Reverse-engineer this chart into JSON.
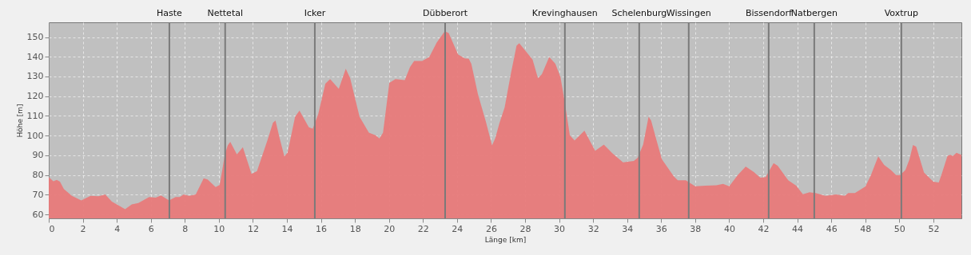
{
  "chart_data": {
    "type": "area",
    "xlabel": "Länge [km]",
    "ylabel": "Höhe [m]",
    "x": [
      0,
      0.27,
      0.47,
      0.66,
      0.89,
      1.36,
      1.91,
      2.46,
      2.93,
      3.32,
      3.71,
      4.49,
      4.88,
      5.27,
      5.9,
      6.29,
      6.6,
      7.07,
      7.46,
      7.7,
      7.93,
      8.25,
      8.64,
      9.11,
      9.34,
      9.81,
      10.05,
      10.36,
      10.52,
      10.67,
      11.06,
      11.41,
      11.92,
      12.24,
      12.86,
      13.18,
      13.33,
      13.57,
      13.85,
      14.04,
      14.48,
      14.74,
      15.29,
      15.52,
      15.84,
      16.26,
      16.54,
      16.78,
      17.05,
      17.46,
      17.72,
      18.27,
      18.82,
      19.21,
      19.44,
      19.65,
      20.02,
      20.38,
      20.93,
      21.24,
      21.48,
      21.95,
      22.37,
      22.81,
      23.28,
      23.51,
      24.06,
      24.45,
      24.69,
      24.84,
      25.23,
      25.7,
      26.06,
      26.25,
      26.49,
      26.8,
      27.16,
      27.5,
      27.66,
      28.44,
      28.76,
      28.99,
      29.42,
      29.78,
      30.08,
      30.32,
      30.63,
      30.91,
      31.49,
      32.12,
      32.63,
      33.14,
      33.76,
      34.39,
      34.62,
      34.94,
      35.26,
      35.41,
      35.73,
      36.04,
      36.74,
      36.98,
      37.45,
      38,
      38.62,
      39.25,
      39.64,
      40,
      40.5,
      40.97,
      41.44,
      41.83,
      42.14,
      42.61,
      42.85,
      43.47,
      43.94,
      44.33,
      44.73,
      45.04,
      45.66,
      46.29,
      46.79,
      47,
      47.39,
      48.01,
      48.33,
      48.76,
      49.11,
      49.5,
      49.81,
      50.05,
      50.36,
      50.6,
      50.8,
      50.99,
      51.45,
      52,
      52.32,
      52.52,
      52.83,
      52.99,
      53.15,
      53.36,
      53.65
    ],
    "series": [
      {
        "color": "#e87a7a",
        "values": [
          78.9,
          76.8,
          77.5,
          76.6,
          72.9,
          69.4,
          67.1,
          69.4,
          69.2,
          70.1,
          66.5,
          62.7,
          65.1,
          65.8,
          68.8,
          68.5,
          69.6,
          67.1,
          68.8,
          68.8,
          70.1,
          69.4,
          70.1,
          78.3,
          77.7,
          73.9,
          75,
          90.7,
          95,
          96.8,
          90.5,
          94.1,
          80.6,
          82,
          97.7,
          106.5,
          107.6,
          98.8,
          89.4,
          91.4,
          109.6,
          112.7,
          104.2,
          103.5,
          110.9,
          126.4,
          128.7,
          126.4,
          123.7,
          133.9,
          129.1,
          109.6,
          101.5,
          100.2,
          98.5,
          101.5,
          126.8,
          128.7,
          128.2,
          134.9,
          137.9,
          137.9,
          139.9,
          147.3,
          153,
          152,
          141.2,
          139.2,
          139,
          136.5,
          121,
          106.9,
          95,
          98.8,
          106.2,
          114.3,
          131.2,
          145.7,
          146.9,
          138.6,
          129.1,
          131.2,
          139.9,
          136.5,
          129.8,
          117.7,
          100.2,
          97.5,
          102.5,
          92.3,
          95.4,
          91,
          86.4,
          87.1,
          88.7,
          95.4,
          109.6,
          107.6,
          97.5,
          88,
          79.3,
          77.3,
          77.3,
          74.3,
          74.6,
          74.8,
          75.5,
          74.3,
          79.9,
          84.3,
          81.6,
          78.6,
          78.9,
          86,
          84.7,
          77.3,
          74.6,
          70.2,
          71.2,
          70.9,
          69.4,
          70.1,
          69.4,
          70.8,
          70.8,
          74.2,
          79.9,
          89.4,
          85.1,
          82.6,
          79.9,
          79.9,
          82.6,
          88,
          95.2,
          94.4,
          81.3,
          76.6,
          76.2,
          81.3,
          89.6,
          90.3,
          89.6,
          91.3,
          90.3
        ]
      }
    ],
    "xlim": [
      0,
      53.65
    ],
    "ylim": [
      58,
      157.5
    ],
    "xticks": [
      0,
      2,
      4,
      6,
      8,
      10,
      12,
      14,
      16,
      18,
      20,
      22,
      24,
      26,
      28,
      30,
      32,
      34,
      36,
      38,
      40,
      42,
      44,
      46,
      48,
      50,
      52
    ],
    "yticks": [
      60,
      70,
      80,
      90,
      100,
      110,
      120,
      130,
      140,
      150
    ],
    "grid": true,
    "ref_lines": [
      {
        "axis": "x",
        "value": 7.09,
        "label": "Haste",
        "color": "#7a7a7a"
      },
      {
        "axis": "x",
        "value": 10.37,
        "label": "Nettetal",
        "color": "#7a7a7a"
      },
      {
        "axis": "x",
        "value": 15.64,
        "label": "Icker",
        "color": "#7a7a7a"
      },
      {
        "axis": "x",
        "value": 23.3,
        "label": "Dübberort",
        "color": "#7a7a7a"
      },
      {
        "axis": "x",
        "value": 30.34,
        "label": "Krevinghausen",
        "color": "#7a7a7a"
      },
      {
        "axis": "x",
        "value": 34.71,
        "label": "Schelenburg",
        "color": "#7a7a7a"
      },
      {
        "axis": "x",
        "value": 37.62,
        "label": "Wissingen",
        "color": "#7a7a7a"
      },
      {
        "axis": "x",
        "value": 42.32,
        "label": "Bissendorf",
        "color": "#7a7a7a"
      },
      {
        "axis": "x",
        "value": 45.0,
        "label": "Natbergen",
        "color": "#7a7a7a"
      },
      {
        "axis": "x",
        "value": 50.12,
        "label": "Voxtrup",
        "color": "#7a7a7a"
      }
    ]
  }
}
